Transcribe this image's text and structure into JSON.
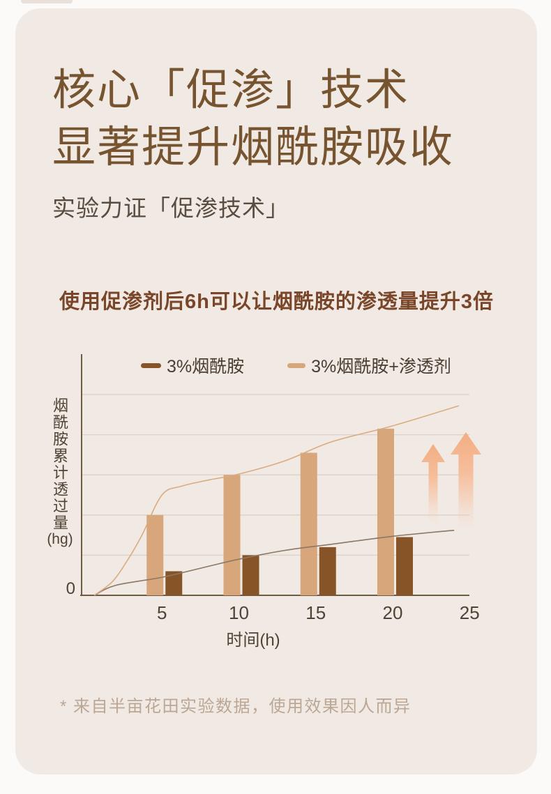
{
  "page": {
    "outer_bg": "#FCFAF8",
    "card_bg": "#F1E9E3",
    "accent_dark_brown": "#875428",
    "accent_light_tan": "#D7A67A",
    "arrow_color": "#F5B890",
    "title_color": "#775430"
  },
  "header": {
    "title_line1": "核心「促渗」技术",
    "title_line2": "显著提升烟酰胺吸收",
    "subtitle": "实验力证「促渗技术」"
  },
  "statement": "使用促渗剂后6h可以让烟酰胺的渗透量提升3倍",
  "footnote": "* 来自半亩花田实验数据，使用效果因人而异",
  "chart_data": {
    "type": "bar",
    "title": "使用促渗剂后6h可以让烟酰胺的渗透量提升3倍",
    "xlabel": "时间(h)",
    "ylabel": "烟酰胺累计透过量",
    "y_unit": "(hg)",
    "origin_label": "0",
    "xlim": [
      0,
      25
    ],
    "ylim": [
      0,
      5
    ],
    "x_ticks": [
      5,
      10,
      15,
      20,
      25
    ],
    "grid": true,
    "legend_position": "top",
    "categories": [
      5,
      10,
      15,
      20
    ],
    "series": [
      {
        "name": "3%烟酰胺",
        "color": "#875428",
        "values": [
          0.6,
          1.0,
          1.2,
          1.45
        ]
      },
      {
        "name": "3%烟酰胺+渗透剂",
        "color": "#D7A67A",
        "values": [
          2.0,
          3.0,
          3.55,
          4.15
        ]
      }
    ],
    "curves": [
      {
        "name": "3%烟酰胺趋势线",
        "color": "#8C7763",
        "points": [
          [
            0.6,
            0
          ],
          [
            2,
            0.25
          ],
          [
            5,
            0.45
          ],
          [
            8,
            0.72
          ],
          [
            10,
            0.9
          ],
          [
            13,
            1.12
          ],
          [
            16,
            1.27
          ],
          [
            20,
            1.47
          ],
          [
            24,
            1.62
          ]
        ]
      },
      {
        "name": "3%烟酰胺+渗透剂趋势线",
        "color": "#D9AC80",
        "points": [
          [
            0.6,
            0
          ],
          [
            1.8,
            0.35
          ],
          [
            2.8,
            0.9
          ],
          [
            3.7,
            1.5
          ],
          [
            5,
            2.5
          ],
          [
            6.3,
            2.72
          ],
          [
            8,
            2.87
          ],
          [
            10,
            3.02
          ],
          [
            13,
            3.35
          ],
          [
            16,
            3.82
          ],
          [
            20,
            4.22
          ],
          [
            24.3,
            4.72
          ]
        ]
      }
    ],
    "annotations": [
      "increase-arrow-small",
      "increase-arrow-large"
    ]
  }
}
